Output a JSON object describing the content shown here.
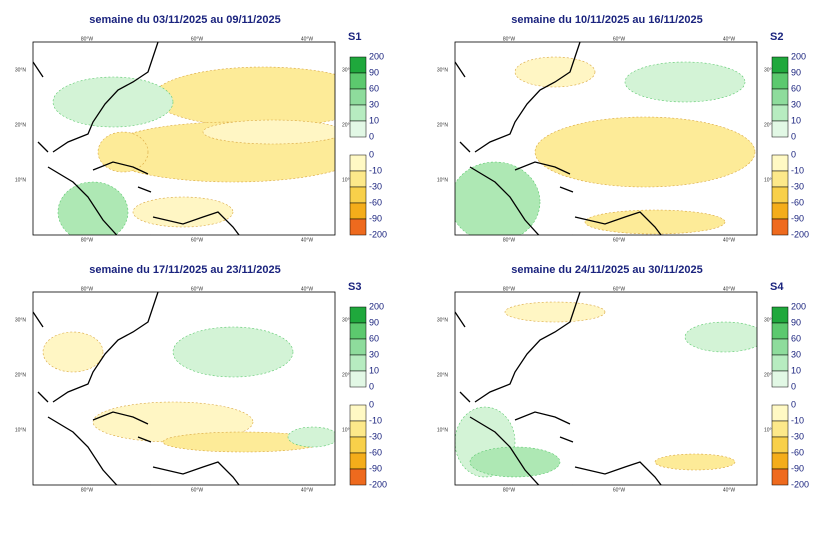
{
  "panels": [
    {
      "title": "semaine du 03/11/2025 au 09/11/2025",
      "label": "S1"
    },
    {
      "title": "semaine du 10/11/2025 au 16/11/2025",
      "label": "S2"
    },
    {
      "title": "semaine du 17/11/2025 au 23/11/2025",
      "label": "S3"
    },
    {
      "title": "semaine du 24/11/2025 au 30/11/2025",
      "label": "S4"
    }
  ],
  "lat_labels": [
    "30°N",
    "20°N",
    "10°N"
  ],
  "lon_labels": [
    "80°W",
    "60°W",
    "40°W"
  ],
  "colorbar": {
    "positive_ticks": [
      200,
      90,
      60,
      30,
      10,
      0
    ],
    "positive_colors": [
      "#1fa83c",
      "#5cc96e",
      "#8edc9c",
      "#b7ecc0",
      "#e2f8e5"
    ],
    "negative_ticks": [
      0,
      -10,
      -30,
      -60,
      -90,
      -200
    ],
    "negative_colors": [
      "#fff9c4",
      "#fde98a",
      "#f8d04a",
      "#f4ad1a",
      "#ee6a1e"
    ]
  }
}
